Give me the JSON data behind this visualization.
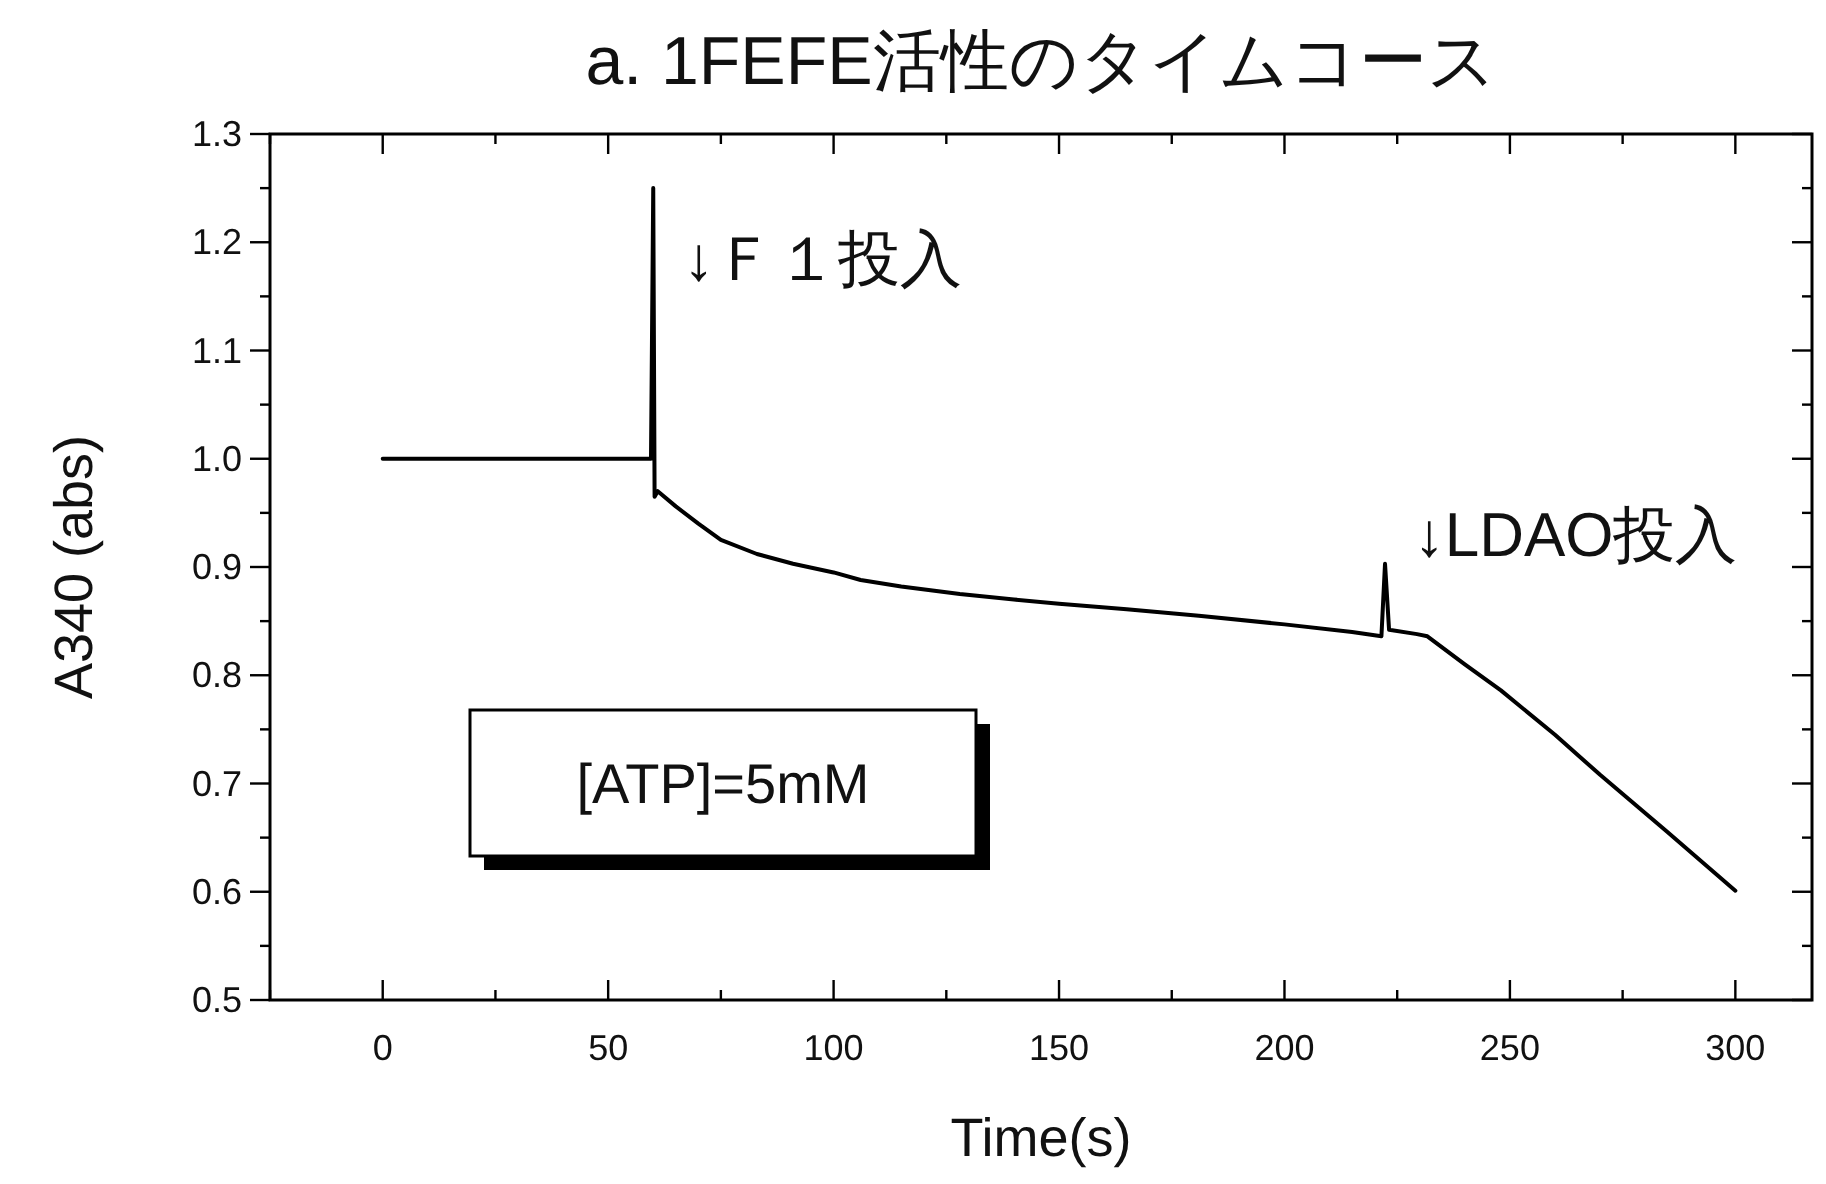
{
  "chart_data": {
    "type": "line",
    "title": "a. 1FEFE活性のタイムコース",
    "xlabel": "Time(s)",
    "ylabel": "A340 (abs)",
    "xlim": [
      -25,
      317
    ],
    "xticks": [
      {
        "value": -25,
        "label": null
      },
      0,
      {
        "value": 25,
        "label": null
      },
      50,
      {
        "value": 75,
        "label": null
      },
      100,
      {
        "value": 125,
        "label": null
      },
      150,
      {
        "value": 175,
        "label": null
      },
      200,
      {
        "value": 225,
        "label": null
      },
      250,
      {
        "value": 275,
        "label": null
      },
      300
    ],
    "ylim": [
      0.5,
      1.3
    ],
    "yticks": [
      0.5,
      {
        "value": 0.55,
        "label": null
      },
      0.6,
      {
        "value": 0.65,
        "label": null
      },
      0.7,
      {
        "value": 0.75,
        "label": null
      },
      0.8,
      {
        "value": 0.85,
        "label": null
      },
      0.9,
      {
        "value": 0.95,
        "label": null
      },
      {
        "value": 1,
        "label": "1.0"
      },
      {
        "value": 1.05,
        "label": null
      },
      1.1,
      {
        "value": 1.15,
        "label": null
      },
      1.2,
      {
        "value": 1.25,
        "label": null
      },
      1.3
    ],
    "grid": false,
    "marker": "none",
    "line_style": "solid",
    "annotations": [
      {
        "text": "↓Ｆ１投入",
        "x": 60,
        "y": 1.25
      },
      {
        "text": "↓LDAO投入",
        "x": 222,
        "y": 0.903
      },
      "[ATP]=5mM"
    ],
    "series": [
      {
        "color": "#000000",
        "x": [
          0,
          10,
          20,
          30,
          40,
          50,
          59.5,
          60,
          60.3,
          61,
          65,
          70,
          75,
          83,
          91,
          100,
          106,
          115,
          128,
          140,
          150,
          165,
          181,
          200,
          215,
          221.5,
          222.3,
          223.2,
          229.4,
          231.7,
          240,
          248,
          260,
          270,
          285,
          300
        ],
        "values": [
          1,
          1,
          1,
          1,
          1,
          1,
          1,
          1.25,
          0.965,
          0.97,
          0.956,
          0.94,
          0.925,
          0.912,
          0.903,
          0.895,
          0.888,
          0.882,
          0.875,
          0.87,
          0.866,
          0.861,
          0.855,
          0.847,
          0.84,
          0.836,
          0.903,
          0.842,
          0.838,
          0.836,
          0.81,
          0.786,
          0.745,
          0.708,
          0.655,
          0.601
        ]
      }
    ]
  }
}
